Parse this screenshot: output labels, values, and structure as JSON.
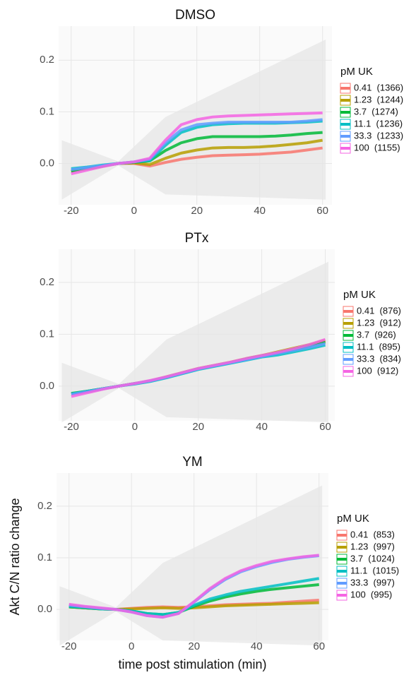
{
  "chart_data": [
    {
      "type": "line",
      "title": "DMSO",
      "legend_title": "pM UK",
      "grid": true,
      "xlim": [
        -24,
        63
      ],
      "ylim": [
        -0.08,
        0.266
      ],
      "xticks": [
        -20,
        0,
        20,
        40,
        60
      ],
      "yticks": [
        {
          "value": 0,
          "label": "0.0"
        },
        0.1,
        0.2
      ],
      "x": [
        -20,
        -15,
        -10,
        -5,
        0,
        5,
        10,
        15,
        20,
        25,
        30,
        35,
        40,
        45,
        50,
        55,
        60
      ],
      "series": [
        {
          "name": "0.41  (1366)",
          "color": "#F8766D",
          "values": [
            -0.015,
            -0.01,
            -0.005,
            0,
            0,
            -0.005,
            0.002,
            0.008,
            0.012,
            0.015,
            0.016,
            0.017,
            0.018,
            0.02,
            0.022,
            0.026,
            0.03
          ]
        },
        {
          "name": "1.23  (1244)",
          "color": "#B79F00",
          "values": [
            -0.015,
            -0.01,
            -0.005,
            0,
            0.001,
            -0.002,
            0.01,
            0.02,
            0.026,
            0.03,
            0.031,
            0.031,
            0.032,
            0.034,
            0.037,
            0.04,
            0.045
          ]
        },
        {
          "name": "3.7  (1274)",
          "color": "#00BA38",
          "values": [
            -0.015,
            -0.01,
            -0.005,
            0,
            0.002,
            0.005,
            0.025,
            0.04,
            0.048,
            0.052,
            0.052,
            0.052,
            0.052,
            0.053,
            0.055,
            0.058,
            0.06
          ]
        },
        {
          "name": "11.1  (1236)",
          "color": "#00BFC4",
          "values": [
            -0.01,
            -0.007,
            -0.003,
            0,
            0.003,
            0.006,
            0.035,
            0.06,
            0.07,
            0.075,
            0.077,
            0.078,
            0.078,
            0.078,
            0.079,
            0.08,
            0.082
          ]
        },
        {
          "name": "33.3  (1233)",
          "color": "#619CFF",
          "values": [
            -0.012,
            -0.008,
            -0.004,
            0,
            0.003,
            0.008,
            0.04,
            0.065,
            0.075,
            0.078,
            0.08,
            0.08,
            0.08,
            0.08,
            0.08,
            0.082,
            0.085
          ]
        },
        {
          "name": "100  (1155)",
          "color": "#F564E3",
          "values": [
            -0.02,
            -0.013,
            -0.006,
            0,
            0.003,
            0.01,
            0.045,
            0.075,
            0.085,
            0.09,
            0.092,
            0.093,
            0.094,
            0.095,
            0.096,
            0.097,
            0.098
          ]
        }
      ]
    },
    {
      "type": "line",
      "title": "PTx",
      "legend_title": "pM UK",
      "grid": true,
      "xlim": [
        -24,
        63
      ],
      "ylim": [
        -0.067,
        0.264
      ],
      "xticks": [
        -20,
        0,
        20,
        40,
        60
      ],
      "yticks": [
        {
          "value": 0,
          "label": "0.0"
        },
        0.1,
        0.2
      ],
      "x": [
        -20,
        -15,
        -10,
        -5,
        0,
        5,
        10,
        15,
        20,
        25,
        30,
        35,
        40,
        45,
        50,
        55,
        60
      ],
      "series": [
        {
          "name": "0.41  (876)",
          "color": "#F8766D",
          "values": [
            -0.015,
            -0.01,
            -0.005,
            0,
            0.005,
            0.01,
            0.017,
            0.025,
            0.033,
            0.039,
            0.045,
            0.052,
            0.058,
            0.064,
            0.071,
            0.078,
            0.086
          ]
        },
        {
          "name": "1.23  (912)",
          "color": "#B79F00",
          "values": [
            -0.015,
            -0.01,
            -0.005,
            0,
            0.005,
            0.01,
            0.018,
            0.026,
            0.034,
            0.04,
            0.046,
            0.053,
            0.059,
            0.066,
            0.073,
            0.08,
            0.088
          ]
        },
        {
          "name": "3.7  (926)",
          "color": "#00BA38",
          "values": [
            -0.014,
            -0.01,
            -0.005,
            0,
            0.005,
            0.01,
            0.017,
            0.025,
            0.033,
            0.039,
            0.045,
            0.052,
            0.058,
            0.064,
            0.071,
            0.078,
            0.085
          ]
        },
        {
          "name": "11.1  (895)",
          "color": "#00BFC4",
          "values": [
            -0.015,
            -0.01,
            -0.005,
            0,
            0.004,
            0.009,
            0.016,
            0.024,
            0.032,
            0.038,
            0.044,
            0.05,
            0.056,
            0.06,
            0.066,
            0.072,
            0.079
          ]
        },
        {
          "name": "33.3  (834)",
          "color": "#619CFF",
          "values": [
            -0.016,
            -0.011,
            -0.005,
            0,
            0.005,
            0.01,
            0.017,
            0.025,
            0.033,
            0.039,
            0.045,
            0.051,
            0.057,
            0.063,
            0.069,
            0.075,
            0.082
          ]
        },
        {
          "name": "100  (912)",
          "color": "#F564E3",
          "values": [
            -0.02,
            -0.013,
            -0.006,
            0,
            0.005,
            0.011,
            0.018,
            0.026,
            0.034,
            0.04,
            0.046,
            0.053,
            0.059,
            0.065,
            0.072,
            0.08,
            0.09
          ]
        }
      ]
    },
    {
      "type": "line",
      "title": "YM",
      "legend_title": "pM UK",
      "grid": true,
      "y_label": "Akt C/N ratio change",
      "x_label": "time post stimulation (min)",
      "xlim": [
        -24,
        63
      ],
      "ylim": [
        -0.06,
        0.264
      ],
      "xticks": [
        -20,
        0,
        20,
        40,
        60
      ],
      "yticks": [
        {
          "value": 0,
          "label": "0.0"
        },
        0.1,
        0.2
      ],
      "x": [
        -20,
        -15,
        -10,
        -5,
        0,
        5,
        10,
        15,
        20,
        25,
        30,
        35,
        40,
        45,
        50,
        55,
        60
      ],
      "series": [
        {
          "name": "0.41  (853)",
          "color": "#F8766D",
          "values": [
            0.005,
            0.003,
            0.001,
            0,
            0.002,
            0.004,
            0.005,
            0.004,
            0.005,
            0.007,
            0.009,
            0.01,
            0.011,
            0.012,
            0.014,
            0.016,
            0.018
          ]
        },
        {
          "name": "1.23  (997)",
          "color": "#B79F00",
          "values": [
            0.005,
            0.003,
            0.001,
            0,
            0.001,
            0.002,
            0.003,
            0.002,
            0.003,
            0.005,
            0.007,
            0.008,
            0.009,
            0.01,
            0.011,
            0.012,
            0.013
          ]
        },
        {
          "name": "3.7  (1024)",
          "color": "#00BA38",
          "values": [
            0.005,
            0.003,
            0.001,
            0,
            -0.003,
            -0.008,
            -0.01,
            -0.006,
            0.006,
            0.016,
            0.024,
            0.03,
            0.035,
            0.039,
            0.042,
            0.045,
            0.048
          ]
        },
        {
          "name": "11.1  (1015)",
          "color": "#00BFC4",
          "values": [
            0.006,
            0.004,
            0.001,
            0,
            -0.003,
            -0.008,
            -0.01,
            -0.006,
            0.008,
            0.02,
            0.028,
            0.035,
            0.04,
            0.045,
            0.05,
            0.055,
            0.06
          ]
        },
        {
          "name": "33.3  (997)",
          "color": "#619CFF",
          "values": [
            0.008,
            0.005,
            0.002,
            0,
            -0.005,
            -0.012,
            -0.015,
            -0.008,
            0.014,
            0.038,
            0.058,
            0.073,
            0.083,
            0.091,
            0.097,
            0.101,
            0.104
          ]
        },
        {
          "name": "100  (995)",
          "color": "#F564E3",
          "values": [
            0.01,
            0.006,
            0.003,
            0,
            -0.005,
            -0.012,
            -0.015,
            -0.008,
            0.015,
            0.04,
            0.06,
            0.075,
            0.085,
            0.093,
            0.098,
            0.102,
            0.105
          ]
        }
      ]
    }
  ]
}
